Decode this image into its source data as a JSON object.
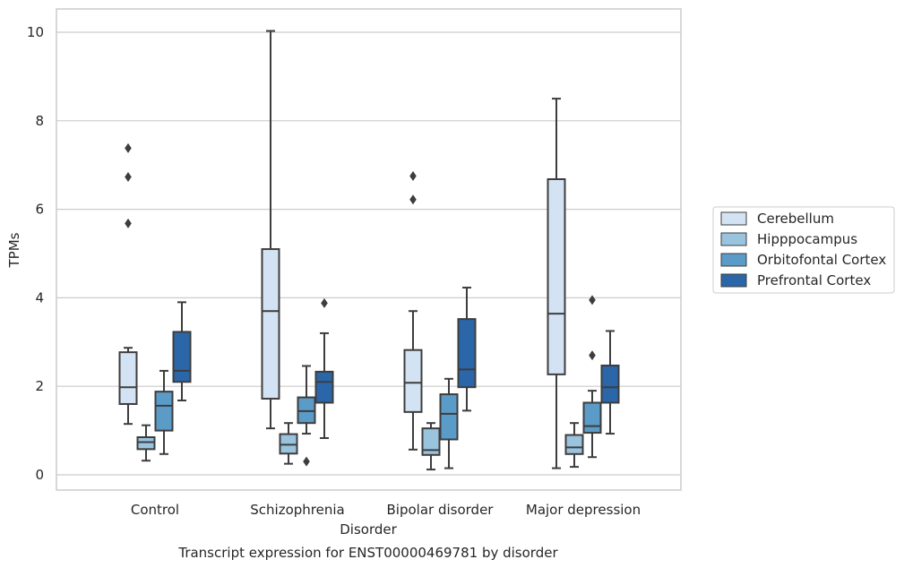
{
  "chart_data": {
    "type": "box",
    "caption": "Transcript expression for ENST00000469781 by disorder",
    "xlabel": "Disorder",
    "ylabel": "TPMs",
    "ylim": [
      -0.35,
      10.55
    ],
    "yticks": [
      0,
      2,
      4,
      6,
      8,
      10
    ],
    "grid": "horizontal",
    "legend_position": "right",
    "categories": [
      "Control",
      "Schizophrenia",
      "Bipolar disorder",
      "Major depression"
    ],
    "series": [
      {
        "name": "Cerebellum",
        "color": "#d4e3f3",
        "boxes": [
          {
            "whislo": 1.15,
            "q1": 1.6,
            "med": 1.98,
            "q3": 2.77,
            "whishi": 2.87,
            "fliers": [
              5.68,
              6.73,
              7.38
            ]
          },
          {
            "whislo": 1.05,
            "q1": 1.72,
            "med": 3.7,
            "q3": 5.1,
            "whishi": 10.03,
            "fliers": []
          },
          {
            "whislo": 0.57,
            "q1": 1.42,
            "med": 2.08,
            "q3": 2.82,
            "whishi": 3.7,
            "fliers": [
              6.22,
              6.75
            ]
          },
          {
            "whislo": 0.15,
            "q1": 2.27,
            "med": 3.64,
            "q3": 6.68,
            "whishi": 8.5,
            "fliers": []
          }
        ]
      },
      {
        "name": "Hipppocampus",
        "color": "#9ac4de",
        "boxes": [
          {
            "whislo": 0.32,
            "q1": 0.58,
            "med": 0.74,
            "q3": 0.85,
            "whishi": 1.12,
            "fliers": []
          },
          {
            "whislo": 0.25,
            "q1": 0.48,
            "med": 0.68,
            "q3": 0.92,
            "whishi": 1.17,
            "fliers": []
          },
          {
            "whislo": 0.12,
            "q1": 0.45,
            "med": 0.56,
            "q3": 1.05,
            "whishi": 1.17,
            "fliers": []
          },
          {
            "whislo": 0.18,
            "q1": 0.47,
            "med": 0.62,
            "q3": 0.9,
            "whishi": 1.17,
            "fliers": []
          }
        ]
      },
      {
        "name": "Orbitofontal Cortex",
        "color": "#5b9bc8",
        "boxes": [
          {
            "whislo": 0.47,
            "q1": 1.0,
            "med": 1.56,
            "q3": 1.88,
            "whishi": 2.35,
            "fliers": []
          },
          {
            "whislo": 0.93,
            "q1": 1.17,
            "med": 1.44,
            "q3": 1.75,
            "whishi": 2.46,
            "fliers": [
              0.3
            ]
          },
          {
            "whislo": 0.15,
            "q1": 0.8,
            "med": 1.38,
            "q3": 1.82,
            "whishi": 2.17,
            "fliers": []
          },
          {
            "whislo": 0.4,
            "q1": 0.95,
            "med": 1.1,
            "q3": 1.63,
            "whishi": 1.9,
            "fliers": [
              2.7,
              3.95
            ]
          }
        ]
      },
      {
        "name": "Prefrontal Cortex",
        "color": "#2a66a8",
        "boxes": [
          {
            "whislo": 1.68,
            "q1": 2.1,
            "med": 2.35,
            "q3": 3.23,
            "whishi": 3.9,
            "fliers": []
          },
          {
            "whislo": 0.83,
            "q1": 1.63,
            "med": 2.1,
            "q3": 2.33,
            "whishi": 3.2,
            "fliers": [
              3.88
            ]
          },
          {
            "whislo": 1.45,
            "q1": 1.98,
            "med": 2.38,
            "q3": 3.52,
            "whishi": 4.23,
            "fliers": []
          },
          {
            "whislo": 0.93,
            "q1": 1.63,
            "med": 1.98,
            "q3": 2.47,
            "whishi": 3.25,
            "fliers": []
          }
        ]
      }
    ]
  }
}
